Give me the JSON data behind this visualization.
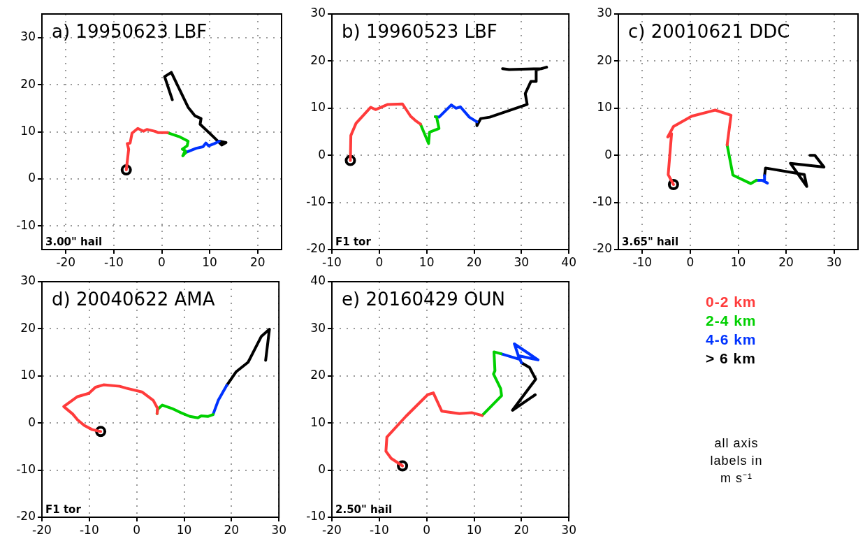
{
  "chart_data": [
    {
      "type": "line",
      "title": "a) 19950623 LBF",
      "annotations": [
        "3.00\" hail"
      ],
      "xlim": [
        -25,
        25
      ],
      "xticks": [
        -20,
        -10,
        0,
        10,
        20
      ],
      "ylim": [
        -15,
        35
      ],
      "yticks": [
        -10,
        0,
        10,
        20,
        30
      ],
      "grid": true,
      "marker": "none",
      "series": [
        {
          "name": "0-2 km",
          "color": "#ff3b3b",
          "x": [
            -7.4,
            -6.9,
            -7.2,
            -6.6,
            -6.2,
            -5,
            -3.8,
            -3.1,
            -1.4,
            -0.7,
            1.2
          ],
          "values": [
            1.9,
            6.3,
            7.5,
            7.6,
            9.7,
            10.7,
            10.1,
            10.5,
            10.1,
            9.8,
            9.8
          ]
        },
        {
          "name": "2-4 km",
          "color": "#00d000",
          "x": [
            1.2,
            3.8,
            5.5,
            5.3,
            4.3,
            4.9,
            4.4,
            5
          ],
          "values": [
            9.8,
            8.9,
            8,
            7,
            6.3,
            6,
            4.9,
            5.6
          ]
        },
        {
          "name": "4-6 km",
          "color": "#0033ff",
          "x": [
            5,
            7.2,
            8.6,
            9.2,
            9.8,
            11,
            12
          ],
          "values": [
            5.6,
            6.5,
            6.8,
            7.6,
            7,
            7.5,
            8
          ]
        },
        {
          "name": "> 6 km",
          "color": "#000000",
          "x": [
            12,
            13.4,
            12.5,
            10.8,
            8,
            8.2,
            6.9,
            5.5,
            2,
            0.6,
            2.2
          ],
          "values": [
            8,
            7.7,
            7.2,
            8.9,
            11.6,
            12.8,
            13.4,
            15.2,
            22.6,
            21.7,
            16.8
          ]
        },
        {
          "type": "scatter",
          "marker": "circle",
          "color": "#000000",
          "x": [
            -7.4
          ],
          "values": [
            1.9
          ]
        }
      ]
    },
    {
      "type": "line",
      "title": "b) 19960523 LBF",
      "annotations": [
        "F1 tor"
      ],
      "xlim": [
        -10,
        40
      ],
      "xticks": [
        -10,
        0,
        10,
        20,
        30,
        40
      ],
      "ylim": [
        -20,
        30
      ],
      "yticks": [
        -20,
        -10,
        0,
        10,
        20,
        30
      ],
      "grid": true,
      "marker": "none",
      "series": [
        {
          "color": "#ff3b3b",
          "x": [
            -6.1,
            -6,
            -4.9,
            -1.8,
            -0.8,
            1.8,
            4.9,
            6.6,
            7.6,
            8.7
          ],
          "values": [
            -1.1,
            4.2,
            6.8,
            10.2,
            9.7,
            10.8,
            10.9,
            8.3,
            7.4,
            6.6
          ]
        },
        {
          "color": "#00d000",
          "x": [
            8.7,
            10.4,
            10.6,
            12.6,
            12.1,
            11.8
          ],
          "values": [
            6.6,
            2.5,
            4.9,
            5.7,
            8.1,
            8.2
          ]
        },
        {
          "color": "#0033ff",
          "x": [
            11.8,
            12.6,
            15.2,
            16.2,
            17.1,
            19,
            20.6
          ],
          "values": [
            8.2,
            8.1,
            10.7,
            10,
            10.3,
            8.1,
            7.1
          ]
        },
        {
          "color": "#000000",
          "x": [
            20.6,
            20.6,
            21.4,
            23.3,
            31.2,
            30.8,
            32,
            33.1,
            33.1,
            35.3,
            34.3,
            27.4,
            26
          ],
          "values": [
            7.1,
            6.3,
            7.8,
            8.1,
            10.8,
            13.1,
            15.7,
            15.7,
            18.1,
            18.7,
            18.4,
            18.2,
            18.4
          ]
        },
        {
          "type": "scatter",
          "marker": "circle",
          "color": "#000000",
          "x": [
            -6.1
          ],
          "values": [
            -1.1
          ]
        }
      ]
    },
    {
      "type": "line",
      "title": "c) 20010621 DDC",
      "annotations": [
        "3.65\" hail"
      ],
      "xlim": [
        -15,
        35
      ],
      "xticks": [
        -10,
        0,
        10,
        20,
        30
      ],
      "ylim": [
        -20,
        30
      ],
      "yticks": [
        -20,
        -10,
        0,
        10,
        20,
        30
      ],
      "grid": true,
      "marker": "none",
      "series": [
        {
          "color": "#ff3b3b",
          "x": [
            -3.5,
            -4.6,
            -3.9,
            -4.7,
            -3.5,
            0.3,
            5.2,
            8.5,
            7.7
          ],
          "values": [
            -6.2,
            -4.1,
            4.6,
            3.9,
            6.1,
            8.3,
            9.6,
            8.5,
            2.2
          ]
        },
        {
          "color": "#00d000",
          "x": [
            7.7,
            8.9,
            12.6,
            13.8
          ],
          "values": [
            2.2,
            -4.2,
            -6,
            -5.3
          ]
        },
        {
          "color": "#0033ff",
          "x": [
            13.8,
            15,
            16.1,
            15.5,
            15.5
          ],
          "values": [
            -5.3,
            -5.3,
            -5.9,
            -5.5,
            -4.3
          ]
        },
        {
          "color": "#000000",
          "x": [
            15.5,
            15.7,
            23.8,
            24.3,
            20.9,
            27.9,
            26,
            25
          ],
          "values": [
            -4.3,
            -2.7,
            -4.1,
            -6.6,
            -1.7,
            -2.5,
            0,
            0
          ]
        },
        {
          "type": "scatter",
          "marker": "circle",
          "color": "#000000",
          "x": [
            -3.5
          ],
          "values": [
            -6.2
          ]
        }
      ]
    },
    {
      "type": "line",
      "title": "d) 20040622 AMA",
      "annotations": [
        "F1 tor"
      ],
      "xlim": [
        -20,
        30
      ],
      "xticks": [
        -20,
        -10,
        0,
        10,
        20,
        30
      ],
      "ylim": [
        -20,
        30
      ],
      "yticks": [
        -20,
        -10,
        0,
        10,
        20,
        30
      ],
      "grid": true,
      "marker": "none",
      "series": [
        {
          "color": "#ff3b3b",
          "x": [
            -7.6,
            -9.4,
            -11.1,
            -12.5,
            -13.5,
            -15.4,
            -12.5,
            -10.1,
            -8.7,
            -7,
            -3.6,
            -2.2,
            1.1,
            3.5,
            4.4,
            4.3
          ],
          "values": [
            -1.8,
            -1.4,
            -0.5,
            0.7,
            1.9,
            3.5,
            5.6,
            6.3,
            7.6,
            8.1,
            7.8,
            7.4,
            6.6,
            4.8,
            3.1,
            2
          ]
        },
        {
          "color": "#00d000",
          "x": [
            4.3,
            4.4,
            5.4,
            7.4,
            9.3,
            11.2,
            12.9,
            13.6,
            15,
            16.1
          ],
          "values": [
            2,
            2.9,
            3.8,
            3.1,
            2.2,
            1.4,
            1.1,
            1.5,
            1.4,
            1.8
          ]
        },
        {
          "color": "#0033ff",
          "x": [
            16.1,
            17.2,
            19
          ],
          "values": [
            1.8,
            4.8,
            8
          ]
        },
        {
          "color": "#000000",
          "x": [
            19,
            21,
            23.5,
            26.3,
            28,
            27.2
          ],
          "values": [
            8,
            10.9,
            12.9,
            18.4,
            19.9,
            13.3
          ]
        },
        {
          "type": "scatter",
          "marker": "circle",
          "color": "#000000",
          "x": [
            -7.6
          ],
          "values": [
            -1.8
          ]
        }
      ]
    },
    {
      "type": "line",
      "title": "e) 20160429 OUN",
      "annotations": [
        "2.50\" hail"
      ],
      "xlim": [
        -20,
        30
      ],
      "xticks": [
        -20,
        -10,
        0,
        10,
        20,
        30
      ],
      "ylim": [
        -10,
        40
      ],
      "yticks": [
        -10,
        0,
        10,
        20,
        30,
        40
      ],
      "grid": true,
      "marker": "none",
      "series": [
        {
          "color": "#ff3b3b",
          "x": [
            -5.1,
            -7.5,
            -8.6,
            -8.4,
            -4.4,
            0.2,
            1.4,
            3.2,
            6.9,
            9.5,
            11.7
          ],
          "values": [
            0.9,
            2.5,
            4,
            7,
            11.4,
            16,
            16.4,
            12.5,
            12,
            12.2,
            11.6
          ]
        },
        {
          "color": "#00d000",
          "x": [
            11.7,
            15.8,
            15.6,
            14.1,
            14.4,
            14.2,
            15.7
          ],
          "values": [
            11.6,
            15.8,
            17.3,
            20.4,
            21.1,
            25.1,
            24.7
          ]
        },
        {
          "color": "#0033ff",
          "x": [
            15.7,
            19.6,
            18.5,
            23.5,
            19.3,
            20
          ],
          "values": [
            24.7,
            23.5,
            26.8,
            23.4,
            24.3,
            22.8
          ]
        },
        {
          "color": "#000000",
          "x": [
            20,
            21.7,
            23,
            18.1,
            22.9
          ],
          "values": [
            22.8,
            21.8,
            19.3,
            12.7,
            16
          ]
        },
        {
          "type": "scatter",
          "marker": "circle",
          "color": "#000000",
          "x": [
            -5.1
          ],
          "values": [
            0.9
          ]
        }
      ]
    },
    {
      "type": "other",
      "annotations": [
        "all axis labels in m s⁻¹"
      ]
    }
  ]
}
